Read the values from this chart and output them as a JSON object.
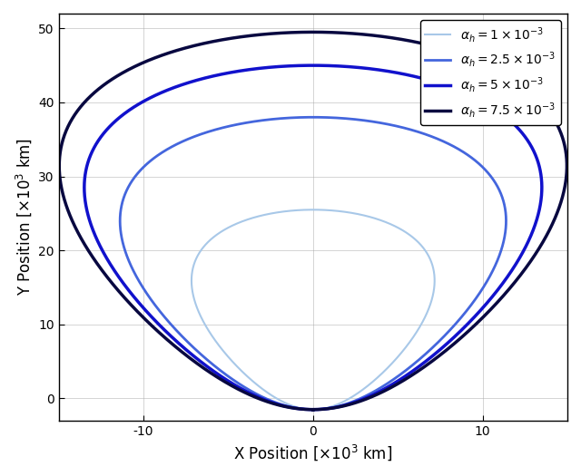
{
  "title": "",
  "xlabel": "X Position [$\\times 10^3$ km]",
  "ylabel": "Y Position [$\\times 10^3$ km]",
  "xlim": [
    -15,
    15
  ],
  "ylim": [
    -3,
    52
  ],
  "xticks": [
    -10,
    0,
    10
  ],
  "yticks": [
    0,
    10,
    20,
    30,
    40,
    50
  ],
  "curves": [
    {
      "label": "$\\alpha_h = 1 \\times 10^{-3}$",
      "color": "#a8c8e8",
      "linewidth": 1.5,
      "x_max": 6.8,
      "y_top": 25.5,
      "y_bot": -1.5,
      "egg": 0.35
    },
    {
      "label": "$\\alpha_h = 2.5 \\times 10^{-3}$",
      "color": "#4466dd",
      "linewidth": 2.0,
      "x_max": 10.8,
      "y_top": 38.0,
      "y_bot": -1.5,
      "egg": 0.35
    },
    {
      "label": "$\\alpha_h = 5 \\times 10^{-3}$",
      "color": "#1111cc",
      "linewidth": 2.5,
      "x_max": 12.8,
      "y_top": 45.0,
      "y_bot": -1.5,
      "egg": 0.35
    },
    {
      "label": "$\\alpha_h = 7.5 \\times 10^{-3}$",
      "color": "#080840",
      "linewidth": 2.5,
      "x_max": 14.2,
      "y_top": 49.5,
      "y_bot": -1.5,
      "egg": 0.35
    }
  ],
  "legend_loc": "upper right",
  "grid": true,
  "figsize": [
    6.4,
    5.25
  ],
  "dpi": 100
}
